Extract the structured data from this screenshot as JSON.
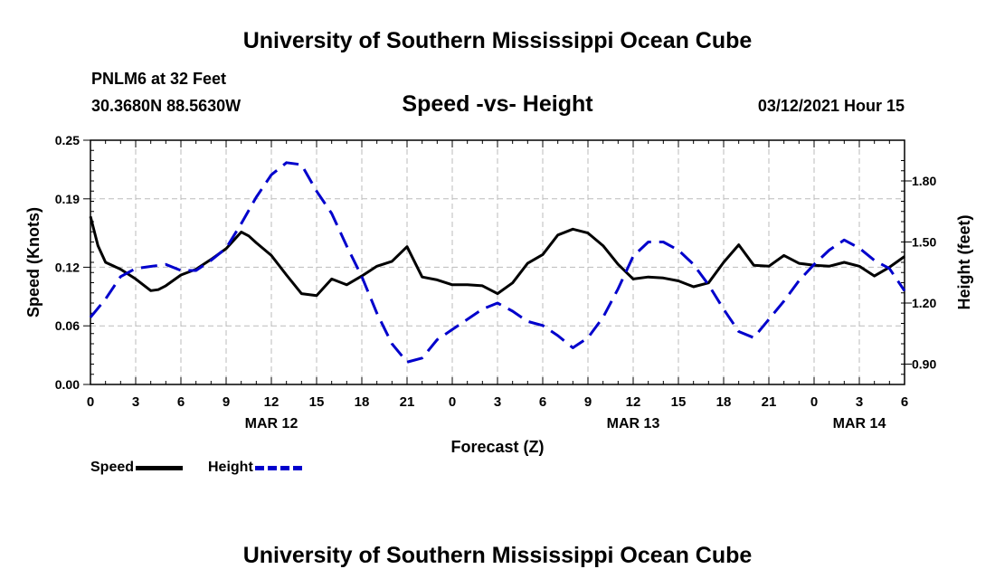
{
  "header": {
    "main_title": "University of Southern Mississippi Ocean Cube",
    "station": "PNLM6 at 32 Feet",
    "coordinates": "30.3680N 88.5630W",
    "subtitle": "Speed -vs- Height",
    "timestamp": "03/12/2021 Hour 15"
  },
  "footer": {
    "title": "University of Southern Mississippi Ocean Cube"
  },
  "legend": {
    "speed_label": "Speed",
    "height_label": "Height"
  },
  "colors": {
    "speed": "#000000",
    "height": "#0000cc",
    "grid": "#bbbbbb"
  },
  "chart_data": {
    "type": "line",
    "title": "Speed -vs- Height",
    "xlabel": "Forecast (Z)",
    "ylabel": "Speed (Knots)",
    "y2label": "Height (feet)",
    "xlim": [
      0,
      54
    ],
    "ylim": [
      0,
      0.25
    ],
    "y2lim": [
      0.8,
      2.0
    ],
    "yticks": [
      0.0,
      0.06,
      0.12,
      0.19,
      0.25
    ],
    "yticklabels": [
      "0.00",
      "0.06",
      "0.12",
      "0.19",
      "0.25"
    ],
    "y2ticks": [
      0.9,
      1.2,
      1.5,
      1.8
    ],
    "y2ticklabels": [
      "0.90",
      "1.20",
      "1.50",
      "1.80"
    ],
    "xticks": [
      0,
      3,
      6,
      9,
      12,
      15,
      18,
      21,
      24,
      27,
      30,
      33,
      36,
      39,
      42,
      45,
      48,
      51,
      54
    ],
    "xticklabels": [
      "0",
      "3",
      "6",
      "9",
      "12",
      "15",
      "18",
      "21",
      "0",
      "3",
      "6",
      "9",
      "12",
      "15",
      "18",
      "21",
      "0",
      "3",
      "6"
    ],
    "date_labels": [
      {
        "x": 12,
        "label": "MAR 12"
      },
      {
        "x": 36,
        "label": "MAR 13"
      },
      {
        "x": 51,
        "label": "MAR 14"
      }
    ],
    "series": [
      {
        "name": "Speed",
        "axis": "left",
        "style": "solid",
        "x": [
          0,
          0.5,
          1,
          2,
          3,
          4,
          4.5,
          5,
          6,
          7,
          8,
          9,
          10,
          10.5,
          11,
          12,
          13,
          14,
          15,
          16,
          17,
          18,
          19,
          20,
          21,
          22,
          23,
          24,
          25,
          26,
          27,
          28,
          29,
          30,
          31,
          32,
          33,
          34,
          35,
          36,
          37,
          38,
          39,
          40,
          41,
          42,
          43,
          44,
          45,
          46,
          47,
          48,
          49,
          50,
          51,
          52,
          53,
          54
        ],
        "values": [
          0.172,
          0.142,
          0.125,
          0.118,
          0.108,
          0.096,
          0.097,
          0.101,
          0.112,
          0.118,
          0.128,
          0.139,
          0.156,
          0.152,
          0.145,
          0.132,
          0.112,
          0.093,
          0.091,
          0.108,
          0.102,
          0.111,
          0.121,
          0.126,
          0.141,
          0.11,
          0.107,
          0.102,
          0.102,
          0.101,
          0.093,
          0.104,
          0.124,
          0.133,
          0.153,
          0.159,
          0.155,
          0.142,
          0.123,
          0.108,
          0.11,
          0.109,
          0.106,
          0.1,
          0.104,
          0.125,
          0.143,
          0.122,
          0.121,
          0.132,
          0.124,
          0.122,
          0.121,
          0.125,
          0.121,
          0.111,
          0.12,
          0.131
        ]
      },
      {
        "name": "Height",
        "axis": "right",
        "style": "dashed",
        "x": [
          0,
          1,
          2,
          3,
          4,
          5,
          6,
          7,
          8,
          9,
          10,
          11,
          12,
          13,
          14,
          15,
          16,
          17,
          18,
          19,
          20,
          21,
          22,
          23,
          24,
          25,
          26,
          27,
          28,
          29,
          30,
          31,
          32,
          33,
          34,
          35,
          36,
          37,
          38,
          39,
          40,
          41,
          42,
          43,
          44,
          45,
          46,
          47,
          48,
          49,
          50,
          51,
          52,
          53,
          54
        ],
        "values": [
          1.13,
          1.22,
          1.33,
          1.37,
          1.38,
          1.39,
          1.36,
          1.36,
          1.41,
          1.47,
          1.59,
          1.72,
          1.83,
          1.89,
          1.88,
          1.75,
          1.64,
          1.48,
          1.33,
          1.15,
          1.0,
          0.91,
          0.93,
          1.02,
          1.07,
          1.12,
          1.17,
          1.2,
          1.16,
          1.11,
          1.09,
          1.04,
          0.98,
          1.03,
          1.13,
          1.27,
          1.43,
          1.5,
          1.5,
          1.46,
          1.39,
          1.29,
          1.17,
          1.06,
          1.03,
          1.12,
          1.21,
          1.31,
          1.39,
          1.46,
          1.51,
          1.47,
          1.41,
          1.37,
          1.26
        ]
      }
    ]
  }
}
